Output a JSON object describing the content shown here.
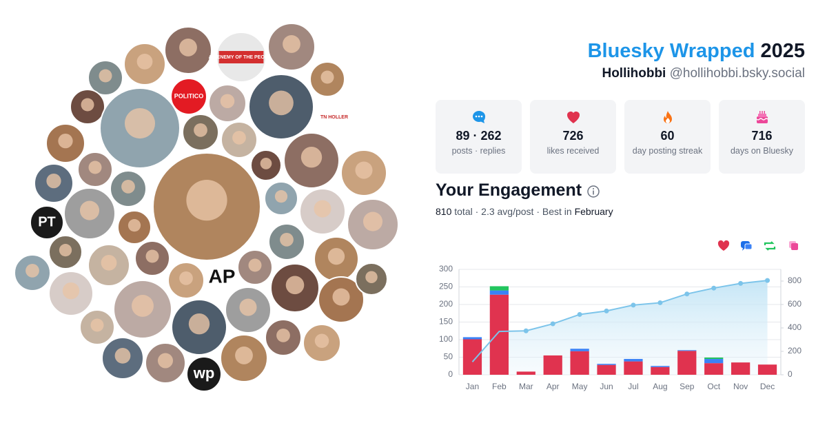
{
  "header": {
    "brand": "Bluesky Wrapped",
    "year": "2025",
    "display_name": "Hollihobbi",
    "handle": "@hollihobbi.bsky.social"
  },
  "avatar_logos": [
    "AN ENEMY OF THE PEOPLE",
    "POLITICO",
    "TN HOLLER",
    "PT",
    "AP",
    "wp"
  ],
  "stats": [
    {
      "value": "89 · 262",
      "label": "posts · replies"
    },
    {
      "value": 726,
      "label": "likes received"
    },
    {
      "value": 60,
      "label": "day posting streak"
    },
    {
      "value": 716,
      "label": "days on Bluesky"
    }
  ],
  "engagement": {
    "title": "Your Engagement",
    "total": 810,
    "summary": "total · 2.3 avg/post · Best in",
    "best_month": "February"
  },
  "chart_data": {
    "type": "bar",
    "stacked": true,
    "grid": true,
    "categories": [
      "Jan",
      "Feb",
      "Mar",
      "Apr",
      "May",
      "Jun",
      "Jul",
      "Aug",
      "Sep",
      "Oct",
      "Nov",
      "Dec"
    ],
    "series": [
      {
        "color": "#e0334f",
        "values": [
          101,
          228,
          9,
          55,
          67,
          28,
          38,
          22,
          68,
          33,
          35,
          29
        ]
      },
      {
        "color": "#3b82f6",
        "values": [
          6,
          12,
          0,
          0,
          7,
          3,
          7,
          3,
          2,
          12,
          0,
          0
        ]
      },
      {
        "color": "#22c55e",
        "values": [
          0,
          12,
          0,
          0,
          0,
          0,
          0,
          0,
          0,
          4,
          0,
          0
        ]
      },
      {
        "type": "line",
        "axis": "y2",
        "color": "#7cc4ea",
        "values": [
          110,
          370,
          375,
          435,
          515,
          545,
          595,
          615,
          690,
          740,
          780,
          805
        ]
      }
    ],
    "ylim": [
      0,
      300
    ],
    "yticks": [
      0,
      50,
      100,
      150,
      200,
      250,
      300
    ],
    "y2lim": [
      0,
      900
    ],
    "y2ticks": [
      0,
      200,
      400,
      600,
      800
    ]
  }
}
